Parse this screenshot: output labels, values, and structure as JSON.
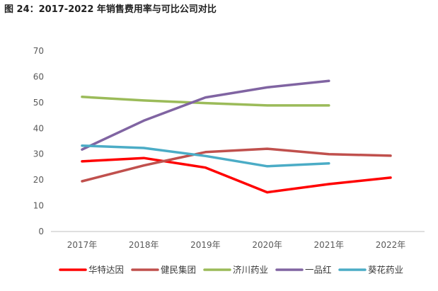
{
  "figure": {
    "title": "图 24：2017-2022 年销售费用率与可比公司对比"
  },
  "chart_data": {
    "type": "line",
    "title": "",
    "xlabel": "",
    "ylabel": "",
    "ylim": [
      0,
      70
    ],
    "yticks": [
      0,
      10,
      20,
      30,
      40,
      50,
      60,
      70
    ],
    "categories": [
      "2017年",
      "2018年",
      "2019年",
      "2020年",
      "2021年",
      "2022年"
    ],
    "grid": false,
    "legend_position": "bottom",
    "series": [
      {
        "name": "华特达因",
        "color": "#ff0000",
        "values": [
          27.2,
          28.5,
          24.8,
          15.2,
          18.4,
          20.9
        ]
      },
      {
        "name": "健民集团",
        "color": "#c0504d",
        "values": [
          19.5,
          25.6,
          30.8,
          32.1,
          30.0,
          29.4
        ]
      },
      {
        "name": "济川药业",
        "color": "#9bbb59",
        "values": [
          52.2,
          50.8,
          49.8,
          48.9,
          48.9,
          null
        ]
      },
      {
        "name": "一品红",
        "color": "#8064a2",
        "values": [
          31.8,
          43.0,
          52.0,
          55.9,
          58.4,
          null
        ]
      },
      {
        "name": "葵花药业",
        "color": "#4bacc6",
        "values": [
          33.3,
          32.4,
          29.3,
          25.3,
          26.4,
          null
        ]
      }
    ]
  }
}
